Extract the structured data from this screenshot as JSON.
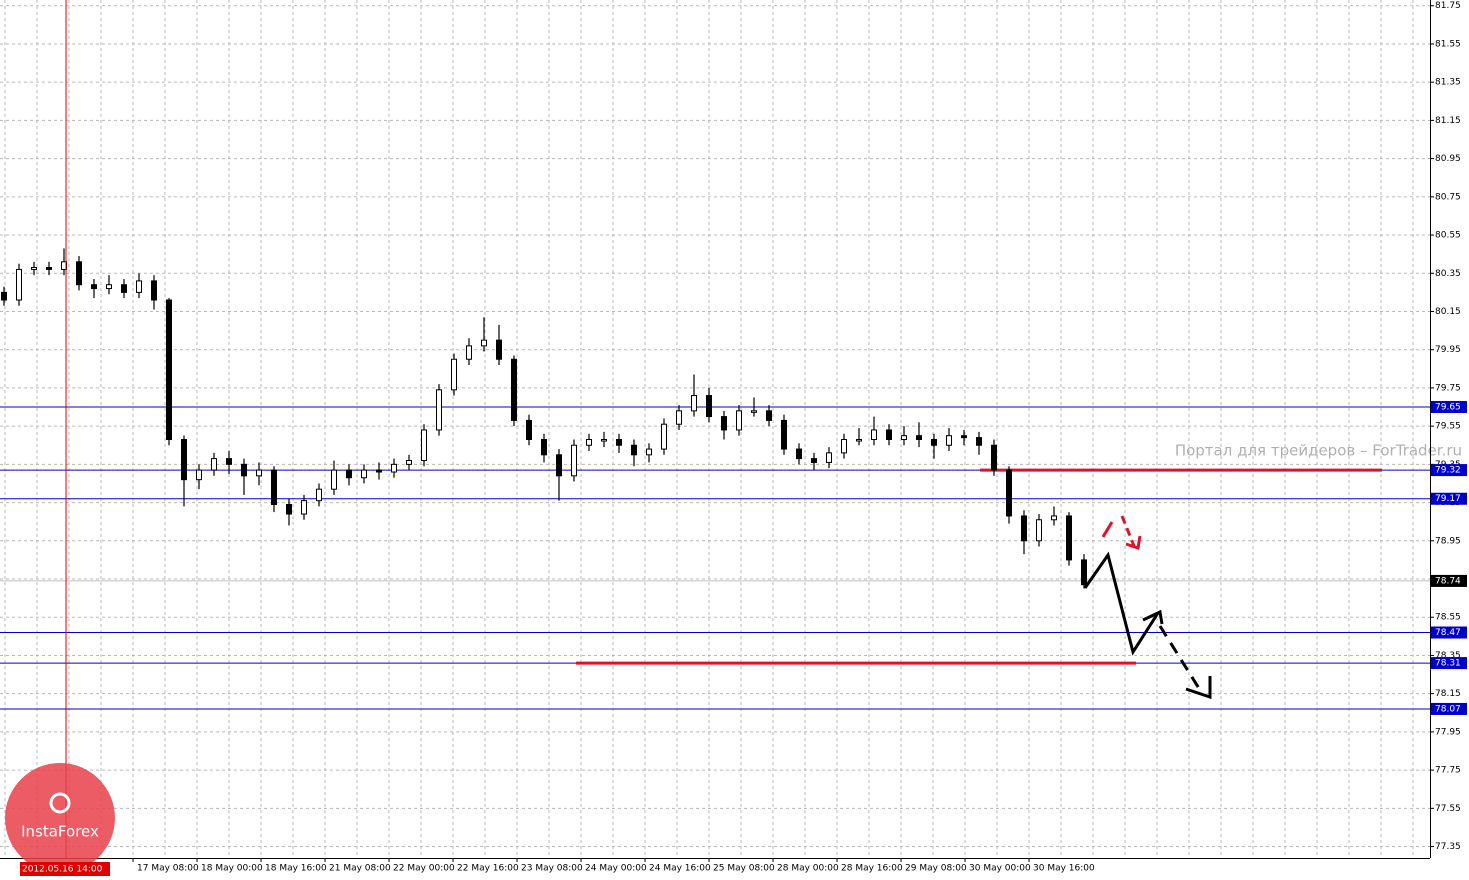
{
  "chart_data": {
    "type": "candlestick",
    "color_up": "#000000",
    "color_down": "#000000",
    "ylim": [
      77.29,
      81.78
    ],
    "yticks": [
      81.75,
      81.55,
      81.35,
      81.15,
      80.95,
      80.75,
      80.55,
      80.35,
      80.15,
      79.95,
      79.75,
      79.55,
      79.35,
      79.15,
      78.95,
      78.75,
      78.55,
      78.35,
      78.15,
      77.95,
      77.75,
      77.55,
      77.35
    ],
    "grid": true,
    "x_labels": [
      "17 May 08:00",
      "18 May 00:00",
      "18 May 16:00",
      "21 May 08:00",
      "22 May 00:00",
      "22 May 16:00",
      "23 May 08:00",
      "24 May 00:00",
      "24 May 16:00",
      "25 May 08:00",
      "28 May 00:00",
      "28 May 16:00",
      "29 May 08:00",
      "30 May 00:00",
      "30 May 16:00"
    ],
    "cursor_label": "2012.05.16 14:00",
    "levels": [
      79.65,
      79.32,
      79.17,
      78.74,
      78.47,
      78.31,
      78.07
    ],
    "level_color": "#0000cc",
    "current_price_level": 3,
    "annotation_color": "#e0102a",
    "watermark": "Портал для трейдеров – ForTrader.ru",
    "logo": "InstaForex",
    "open": [
      80.25,
      80.21,
      80.37,
      80.38,
      80.37,
      80.41,
      80.29,
      80.27,
      80.29,
      80.25,
      80.31,
      80.21,
      79.48,
      79.27,
      79.32,
      79.38,
      79.35,
      79.29,
      79.32,
      79.14,
      79.09,
      79.16,
      79.22,
      79.32,
      79.28,
      79.32,
      79.31,
      79.35,
      79.37,
      79.53,
      79.74,
      79.9,
      79.97,
      80.0,
      79.9,
      79.58,
      79.48,
      79.4,
      79.29,
      79.45,
      79.48,
      79.48,
      79.45,
      79.4,
      79.43,
      79.56,
      79.63,
      79.71,
      79.6,
      79.53,
      79.63,
      79.63,
      79.58,
      79.43,
      79.38,
      79.36,
      79.41,
      79.48,
      79.48,
      79.53,
      79.48,
      79.5,
      79.48,
      79.45,
      79.5,
      79.49,
      79.45,
      79.32,
      79.08,
      78.95,
      79.06,
      79.08,
      78.85
    ],
    "high": [
      80.28,
      80.4,
      80.41,
      80.41,
      80.48,
      80.44,
      80.32,
      80.34,
      80.32,
      80.35,
      80.34,
      80.22,
      79.5,
      79.35,
      79.41,
      79.42,
      79.38,
      79.36,
      79.34,
      79.17,
      79.19,
      79.25,
      79.37,
      79.35,
      79.35,
      79.36,
      79.38,
      79.4,
      79.56,
      79.77,
      79.93,
      80.01,
      80.12,
      80.08,
      79.92,
      79.61,
      79.51,
      79.43,
      79.48,
      79.51,
      79.52,
      79.51,
      79.48,
      79.46,
      79.59,
      79.66,
      79.82,
      79.75,
      79.63,
      79.66,
      79.7,
      79.66,
      79.61,
      79.46,
      79.41,
      79.44,
      79.51,
      79.54,
      79.6,
      79.56,
      79.55,
      79.57,
      79.51,
      79.54,
      79.53,
      79.52,
      79.48,
      79.34,
      79.11,
      79.09,
      79.13,
      79.1,
      78.88
    ],
    "low": [
      80.18,
      80.18,
      80.34,
      80.34,
      80.34,
      80.26,
      80.22,
      80.24,
      80.22,
      80.22,
      80.16,
      79.45,
      79.13,
      79.22,
      79.29,
      79.3,
      79.19,
      79.24,
      79.1,
      79.03,
      79.06,
      79.13,
      79.19,
      79.24,
      79.25,
      79.27,
      79.28,
      79.32,
      79.34,
      79.5,
      79.71,
      79.87,
      79.94,
      79.87,
      79.55,
      79.45,
      79.36,
      79.16,
      79.26,
      79.42,
      79.44,
      79.41,
      79.34,
      79.36,
      79.4,
      79.53,
      79.6,
      79.57,
      79.48,
      79.5,
      79.6,
      79.55,
      79.4,
      79.35,
      79.32,
      79.33,
      79.38,
      79.45,
      79.45,
      79.45,
      79.45,
      79.44,
      79.38,
      79.42,
      79.45,
      79.4,
      79.29,
      79.04,
      78.88,
      78.92,
      79.03,
      78.82,
      78.7
    ],
    "close": [
      80.21,
      80.37,
      80.38,
      80.37,
      80.41,
      80.29,
      80.27,
      80.29,
      80.25,
      80.31,
      80.21,
      79.48,
      79.27,
      79.32,
      79.38,
      79.35,
      79.29,
      79.32,
      79.14,
      79.09,
      79.16,
      79.22,
      79.32,
      79.28,
      79.32,
      79.31,
      79.35,
      79.37,
      79.53,
      79.74,
      79.9,
      79.97,
      80.0,
      79.9,
      79.58,
      79.48,
      79.4,
      79.29,
      79.45,
      79.48,
      79.48,
      79.45,
      79.4,
      79.43,
      79.56,
      79.63,
      79.71,
      79.6,
      79.53,
      79.63,
      79.63,
      79.58,
      79.43,
      79.38,
      79.36,
      79.41,
      79.48,
      79.48,
      79.53,
      79.48,
      79.5,
      79.48,
      79.45,
      79.5,
      79.49,
      79.45,
      79.32,
      79.08,
      78.95,
      79.06,
      79.08,
      78.85,
      78.72
    ]
  }
}
